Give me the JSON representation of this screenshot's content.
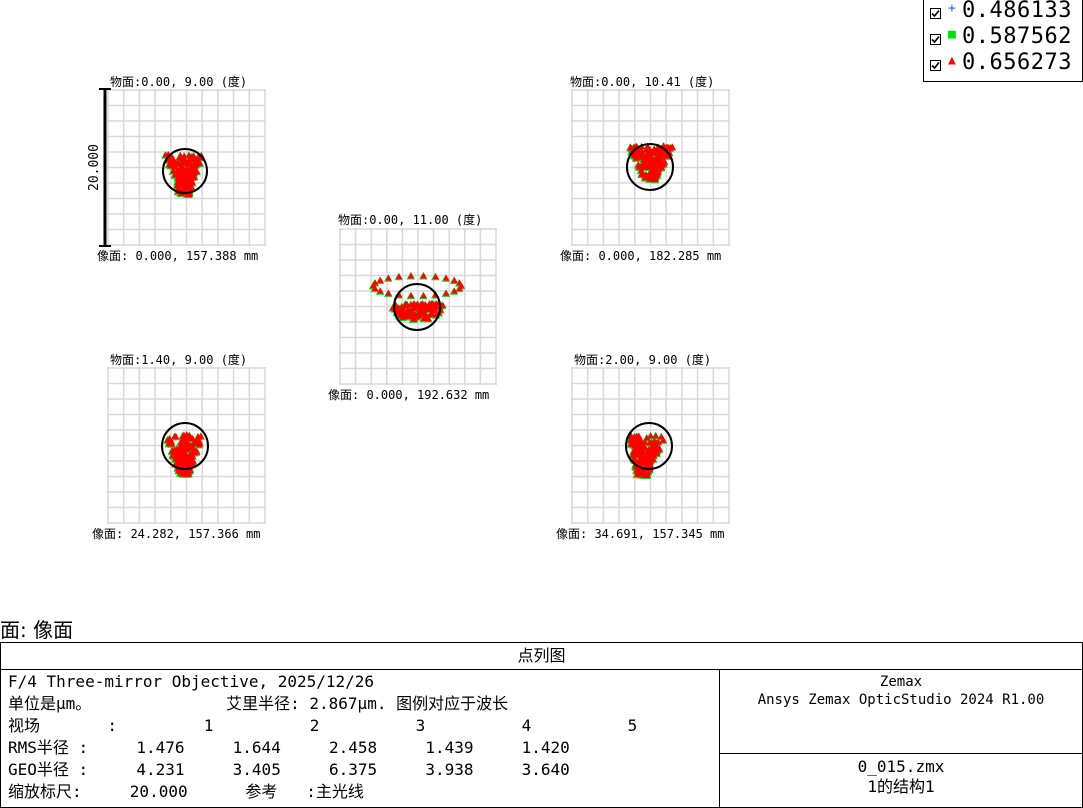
{
  "legend": [
    {
      "marker": "+",
      "color": "#3a55ff",
      "wavelength": "0.486133"
    },
    {
      "marker": "■",
      "color": "#00dd00",
      "wavelength": "0.587562"
    },
    {
      "marker": "▲",
      "color": "#ff0000",
      "wavelength": "0.656273"
    }
  ],
  "scale_bar_label": "20.000",
  "surface_label": "面: 像面",
  "chart_data": [
    {
      "type": "scatter",
      "field": 1,
      "object_label": "物面:0.00, 9.00 (度)",
      "image_label": "像面: 0.000, 157.388 mm",
      "rms_radius": 1.476,
      "geo_radius": 4.231
    },
    {
      "type": "scatter",
      "field": 2,
      "object_label": "物面:0.00, 10.41 (度)",
      "image_label": "像面: 0.000, 182.285 mm",
      "rms_radius": 1.644,
      "geo_radius": 3.405
    },
    {
      "type": "scatter",
      "field": 3,
      "object_label": "物面:0.00, 11.00 (度)",
      "image_label": "像面: 0.000, 192.632 mm",
      "rms_radius": 2.458,
      "geo_radius": 6.375
    },
    {
      "type": "scatter",
      "field": 4,
      "object_label": "物面:1.40, 9.00 (度)",
      "image_label": "像面: 24.282, 157.366 mm",
      "rms_radius": 1.439,
      "geo_radius": 3.938
    },
    {
      "type": "scatter",
      "field": 5,
      "object_label": "物面:2.00, 9.00 (度)",
      "image_label": "像面: 34.691, 157.345 mm",
      "rms_radius": 1.42,
      "geo_radius": 3.64
    }
  ],
  "info": {
    "title": "点列图",
    "line1": "F/4 Three-mirror Objective, 2025/12/26",
    "line2": "单位是μm。              艾里半径: 2.867μm. 图例对应于波长",
    "line3": "视场       :         1          2          3          4          5",
    "line4": "RMS半径 :     1.476     1.644     2.458     1.439     1.420",
    "line5": "GEO半径 :     4.231     3.405     6.375     3.938     3.640",
    "line6": "缩放标尺:     20.000      参考   :主光线",
    "vendor": "Zemax",
    "product": "Ansys Zemax OpticStudio 2024 R1.00",
    "file": "0_015.zmx",
    "config": "1的结构1"
  }
}
